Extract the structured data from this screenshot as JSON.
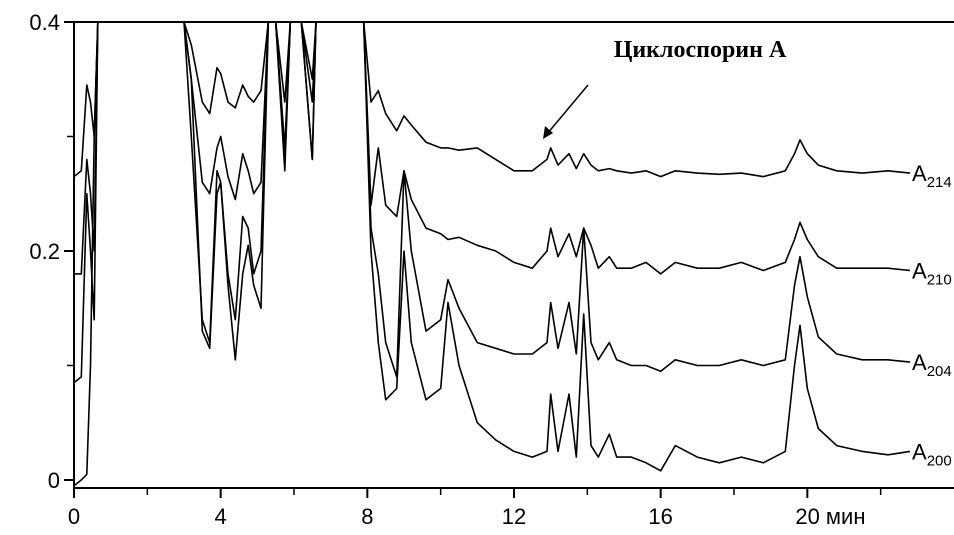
{
  "chart_data": {
    "type": "line",
    "annotation": "Циклоспорин A",
    "x": [
      0,
      0.2,
      0.35,
      0.45,
      0.55,
      0.65,
      1,
      3,
      3.2,
      3.5,
      3.7,
      3.9,
      4.0,
      4.2,
      4.4,
      4.6,
      4.75,
      4.9,
      5.1,
      5.3,
      5.5,
      5.75,
      5.9,
      6.2,
      6.5,
      6.6,
      6.8,
      7.5,
      7.9,
      8.1,
      8.3,
      8.5,
      8.8,
      9.0,
      9.2,
      9.6,
      10.0,
      10.2,
      10.5,
      11,
      11.5,
      12,
      12.5,
      12.9,
      13.0,
      13.2,
      13.5,
      13.7,
      13.9,
      14.1,
      14.3,
      14.6,
      14.8,
      15.2,
      15.6,
      16,
      16.4,
      17,
      17.6,
      18.2,
      18.8,
      19.4,
      19.65,
      19.8,
      20.0,
      20.3,
      20.8,
      21.5,
      22.2,
      22.8
    ],
    "series": [
      {
        "name": "A214",
        "color": "#000000",
        "values": [
          0.265,
          0.27,
          0.345,
          0.33,
          0.3,
          0.4,
          0.4,
          0.4,
          0.38,
          0.33,
          0.32,
          0.36,
          0.355,
          0.33,
          0.325,
          0.345,
          0.335,
          0.33,
          0.34,
          0.4,
          0.4,
          0.33,
          0.4,
          0.4,
          0.35,
          0.4,
          0.4,
          0.4,
          0.4,
          0.33,
          0.34,
          0.32,
          0.305,
          0.318,
          0.31,
          0.295,
          0.29,
          0.29,
          0.288,
          0.29,
          0.28,
          0.27,
          0.27,
          0.28,
          0.29,
          0.275,
          0.285,
          0.272,
          0.285,
          0.275,
          0.27,
          0.272,
          0.27,
          0.268,
          0.27,
          0.265,
          0.27,
          0.268,
          0.267,
          0.268,
          0.265,
          0.27,
          0.285,
          0.297,
          0.285,
          0.275,
          0.27,
          0.268,
          0.27,
          0.268
        ]
      },
      {
        "name": "A210",
        "color": "#000000",
        "values": [
          0.18,
          0.18,
          0.28,
          0.25,
          0.2,
          0.4,
          0.4,
          0.4,
          0.35,
          0.26,
          0.25,
          0.29,
          0.3,
          0.265,
          0.245,
          0.285,
          0.27,
          0.25,
          0.26,
          0.4,
          0.4,
          0.29,
          0.4,
          0.4,
          0.33,
          0.4,
          0.4,
          0.4,
          0.4,
          0.24,
          0.29,
          0.24,
          0.23,
          0.27,
          0.245,
          0.22,
          0.215,
          0.21,
          0.212,
          0.205,
          0.2,
          0.19,
          0.185,
          0.2,
          0.22,
          0.195,
          0.215,
          0.195,
          0.22,
          0.205,
          0.185,
          0.195,
          0.185,
          0.185,
          0.19,
          0.18,
          0.19,
          0.185,
          0.185,
          0.19,
          0.183,
          0.19,
          0.21,
          0.225,
          0.21,
          0.195,
          0.185,
          0.185,
          0.185,
          0.183
        ]
      },
      {
        "name": "A204",
        "color": "#000000",
        "values": [
          0.085,
          0.09,
          0.25,
          0.2,
          0.14,
          0.4,
          0.4,
          0.4,
          0.3,
          0.14,
          0.12,
          0.27,
          0.26,
          0.18,
          0.14,
          0.23,
          0.22,
          0.18,
          0.2,
          0.4,
          0.4,
          0.27,
          0.4,
          0.4,
          0.28,
          0.4,
          0.4,
          0.4,
          0.4,
          0.22,
          0.18,
          0.12,
          0.09,
          0.27,
          0.2,
          0.13,
          0.14,
          0.175,
          0.15,
          0.12,
          0.115,
          0.11,
          0.11,
          0.12,
          0.155,
          0.115,
          0.155,
          0.11,
          0.22,
          0.12,
          0.105,
          0.12,
          0.105,
          0.1,
          0.1,
          0.095,
          0.105,
          0.1,
          0.1,
          0.105,
          0.1,
          0.105,
          0.17,
          0.195,
          0.16,
          0.125,
          0.11,
          0.105,
          0.105,
          0.103
        ]
      },
      {
        "name": "A200",
        "color": "#000000",
        "values": [
          -0.005,
          0.0,
          0.005,
          0.1,
          0.3,
          0.4,
          0.4,
          0.4,
          0.35,
          0.13,
          0.115,
          0.25,
          0.26,
          0.17,
          0.105,
          0.18,
          0.205,
          0.17,
          0.15,
          0.4,
          0.4,
          0.28,
          0.4,
          0.4,
          0.28,
          0.4,
          0.4,
          0.4,
          0.4,
          0.2,
          0.12,
          0.07,
          0.08,
          0.2,
          0.12,
          0.07,
          0.08,
          0.155,
          0.1,
          0.05,
          0.035,
          0.025,
          0.02,
          0.025,
          0.075,
          0.025,
          0.075,
          0.02,
          0.145,
          0.03,
          0.02,
          0.04,
          0.02,
          0.02,
          0.015,
          0.008,
          0.03,
          0.02,
          0.015,
          0.02,
          0.015,
          0.025,
          0.1,
          0.135,
          0.08,
          0.045,
          0.03,
          0.025,
          0.022,
          0.025
        ]
      }
    ],
    "xlim": [
      0,
      24
    ],
    "ylim": [
      -0.007,
      0.4
    ],
    "xticks": [
      0,
      4,
      8,
      12,
      16,
      {
        "value": 20,
        "label": "20 мин"
      }
    ],
    "minor_xticks": [
      2,
      6,
      10,
      14,
      18,
      22
    ],
    "yticks": [
      0,
      0.2,
      0.4
    ],
    "minor_yticks": [
      0.1,
      0.3
    ]
  }
}
